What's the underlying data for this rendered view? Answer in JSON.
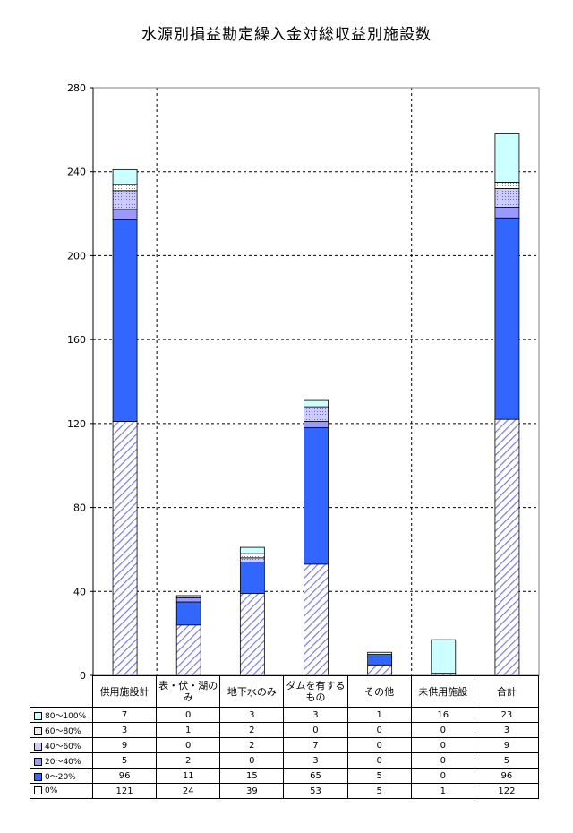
{
  "chart_data": {
    "type": "bar",
    "stacked": true,
    "title": "水源別損益勘定繰入金対総収益別施設数",
    "categories": [
      "供用施設計",
      "表・伏・湖のみ",
      "地下水のみ",
      "ダムを有するもの",
      "その他",
      "未供用施設",
      "合計"
    ],
    "series": [
      {
        "name": "0%",
        "values": [
          121,
          24,
          39,
          53,
          5,
          1,
          122
        ],
        "color": "#ffffff",
        "pattern": "diagonal-hatch",
        "swatch": "#ffffff"
      },
      {
        "name": "0～20%",
        "values": [
          96,
          11,
          15,
          65,
          5,
          0,
          96
        ],
        "color": "#3366ff",
        "swatch": "#3366ff"
      },
      {
        "name": "20～40%",
        "values": [
          5,
          2,
          0,
          3,
          0,
          0,
          5
        ],
        "color": "#9999ff",
        "swatch": "#9999ff"
      },
      {
        "name": "40～60%",
        "values": [
          9,
          0,
          2,
          7,
          0,
          0,
          9
        ],
        "color": "#ccccff",
        "pattern": "dots",
        "swatch": "#ccccff"
      },
      {
        "name": "60～80%",
        "values": [
          3,
          1,
          2,
          0,
          0,
          0,
          3
        ],
        "color": "#ffffff",
        "pattern": "dots",
        "swatch": "#eeeeee"
      },
      {
        "name": "80～100%",
        "values": [
          7,
          0,
          3,
          3,
          1,
          16,
          23
        ],
        "color": "#ccffff",
        "swatch": "#ccffff"
      }
    ],
    "ylim": [
      0,
      280
    ],
    "yticks": [
      0,
      40,
      80,
      120,
      160,
      200,
      240,
      280
    ],
    "grid": true,
    "legend": "table-below"
  }
}
